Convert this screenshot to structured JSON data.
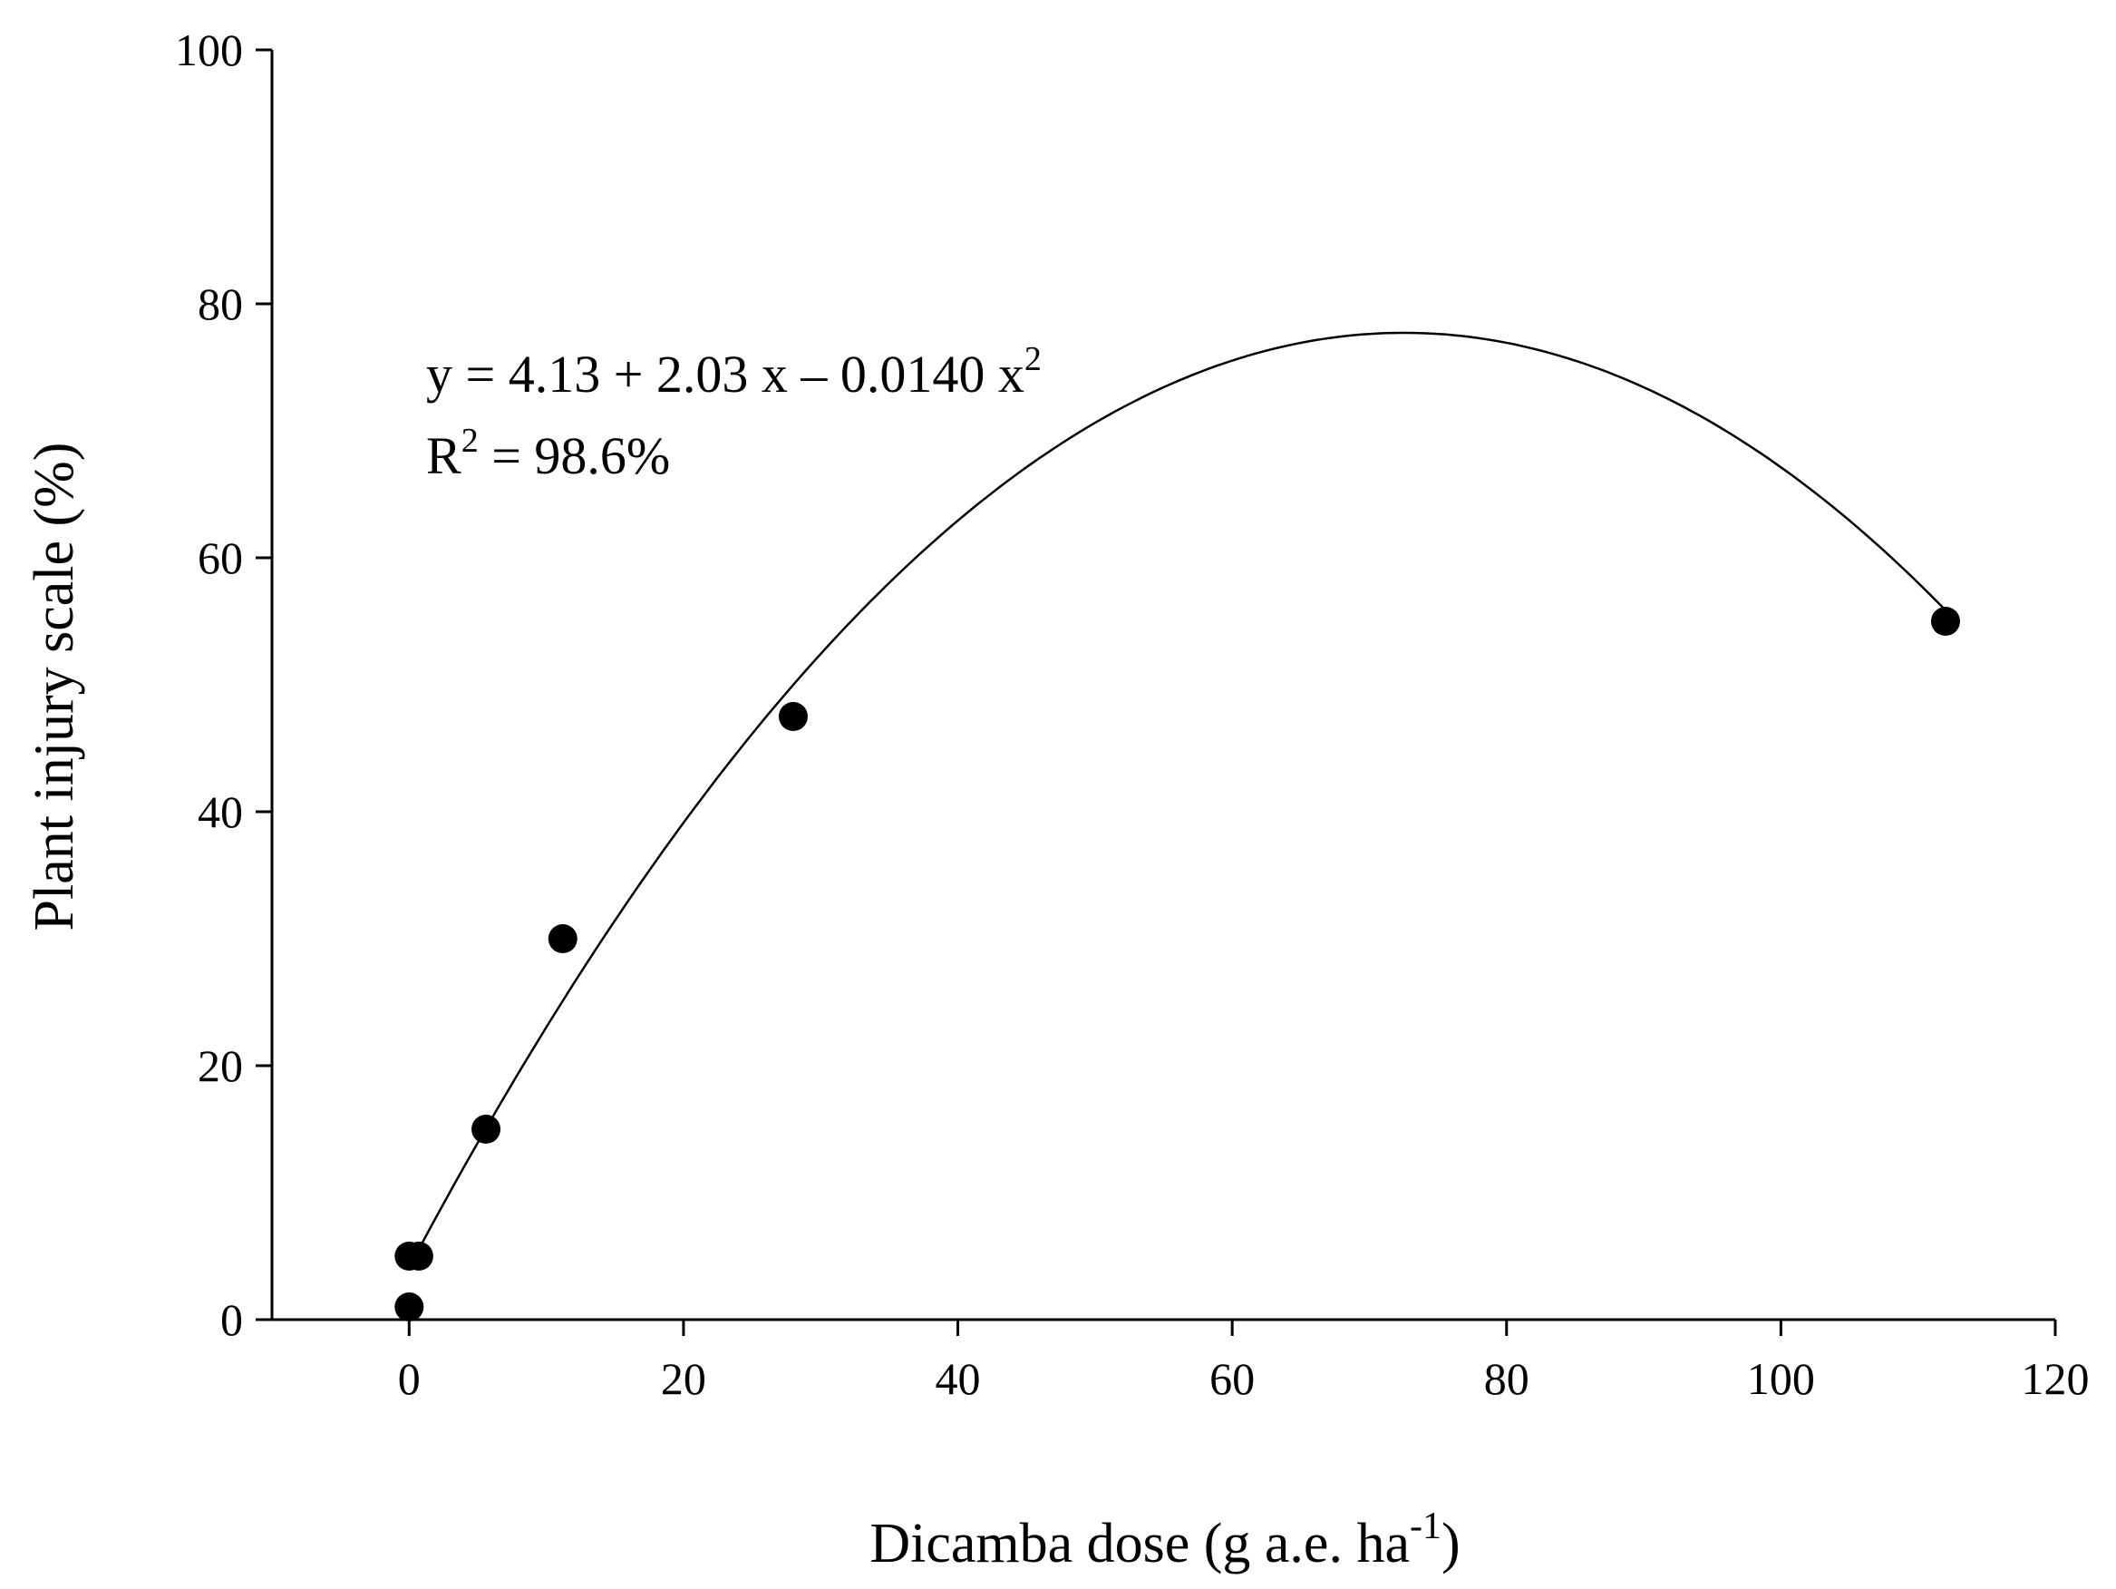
{
  "chart_data": {
    "type": "scatter",
    "title": "",
    "xlabel": {
      "main": "Dicamba dose (g a.e. ha",
      "sup": "-1",
      "tail": ")"
    },
    "ylabel": "Plant injury scale (%)",
    "xlim": [
      -10,
      120
    ],
    "ylim": [
      0,
      100
    ],
    "xticks": [
      0,
      20,
      40,
      60,
      80,
      100,
      120
    ],
    "yticks": [
      0,
      20,
      40,
      60,
      80,
      100
    ],
    "grid": false,
    "series": [
      {
        "points": [
          {
            "x": 0,
            "y": 1
          },
          {
            "x": 0,
            "y": 5
          },
          {
            "x": 0.7,
            "y": 5
          },
          {
            "x": 5.6,
            "y": 15
          },
          {
            "x": 11.2,
            "y": 30
          },
          {
            "x": 28,
            "y": 47.5
          },
          {
            "x": 112,
            "y": 55
          }
        ]
      }
    ],
    "fit": {
      "type": "quadratic",
      "coefficients": [
        4.13,
        2.03,
        -0.014
      ],
      "x_range": [
        0,
        112
      ]
    },
    "annotations": {
      "equation": {
        "text": "y = 4.13 + 2.03 x – 0.0140 x",
        "sup": "2"
      },
      "r2": {
        "base": "R",
        "sup": "2",
        "text": " = 98.6%"
      }
    }
  }
}
